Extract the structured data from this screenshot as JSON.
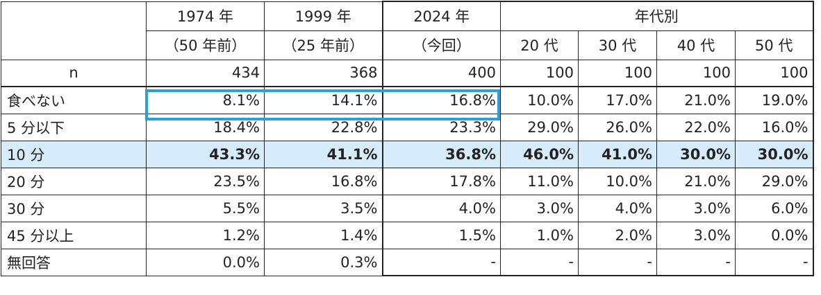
{
  "headers": {
    "y1974": "1974 年",
    "y1974_sub": "（50 年前）",
    "y1999": "1999 年",
    "y1999_sub": "（25 年前）",
    "y2024": "2024 年",
    "y2024_sub": "（今回）",
    "by_age": "年代別",
    "ages": [
      "20 代",
      "30 代",
      "40 代",
      "50 代"
    ]
  },
  "rows": [
    {
      "label": "n",
      "values": [
        "434",
        "368",
        "400",
        "100",
        "100",
        "100",
        "100"
      ]
    },
    {
      "label": "食べない",
      "values": [
        "8.1%",
        "14.1%",
        "16.8%",
        "10.0%",
        "17.0%",
        "21.0%",
        "19.0%"
      ]
    },
    {
      "label": "5 分以下",
      "values": [
        "18.4%",
        "22.8%",
        "23.3%",
        "29.0%",
        "26.0%",
        "22.0%",
        "16.0%"
      ]
    },
    {
      "label": "10 分",
      "values": [
        "43.3%",
        "41.1%",
        "36.8%",
        "46.0%",
        "41.0%",
        "30.0%",
        "30.0%"
      ]
    },
    {
      "label": "20 分",
      "values": [
        "23.5%",
        "16.8%",
        "17.8%",
        "11.0%",
        "10.0%",
        "21.0%",
        "29.0%"
      ]
    },
    {
      "label": "30 分",
      "values": [
        "5.5%",
        "3.5%",
        "4.0%",
        "3.0%",
        "4.0%",
        "3.0%",
        "6.0%"
      ]
    },
    {
      "label": "45 分以上",
      "values": [
        "1.2%",
        "1.4%",
        "1.5%",
        "1.0%",
        "2.0%",
        "3.0%",
        "0.0%"
      ]
    },
    {
      "label": "無回答",
      "values": [
        "0.0%",
        "0.3%",
        "-",
        "-",
        "-",
        "-",
        "-"
      ]
    }
  ],
  "colors": {
    "highlight_row": "#d6ecfa",
    "highlight_box": "#2aa0d8"
  }
}
